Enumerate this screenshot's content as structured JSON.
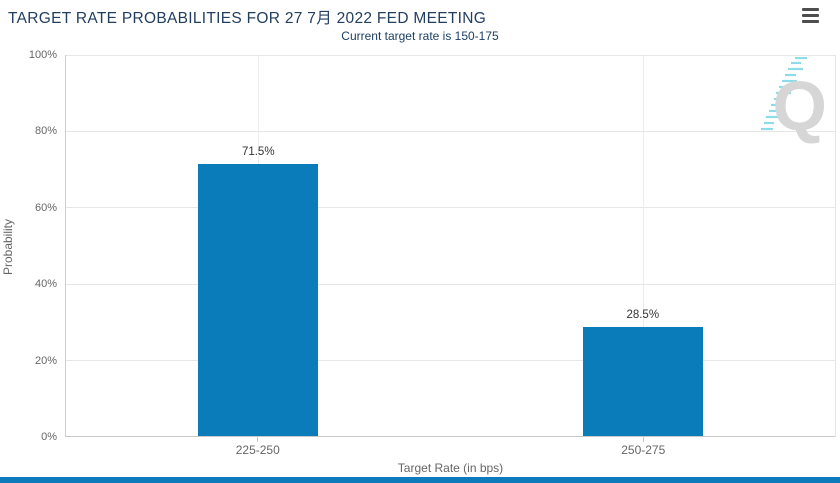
{
  "header": {
    "title": "TARGET RATE PROBABILITIES FOR 27 7月 2022 FED MEETING",
    "subtitle": "Current target rate is 150-175",
    "menu_icon": "hamburger-menu"
  },
  "chart_data": {
    "type": "bar",
    "title": "TARGET RATE PROBABILITIES FOR 27 7月 2022 FED MEETING",
    "subtitle": "Current target rate is 150-175",
    "categories": [
      "225-250",
      "250-275"
    ],
    "values": [
      71.5,
      28.5
    ],
    "value_labels": [
      "71.5%",
      "28.5%"
    ],
    "xlabel": "Target Rate (in bps)",
    "ylabel": "Probability",
    "ylim": [
      0,
      100
    ],
    "ytick_labels": [
      "100%",
      "80%",
      "60%",
      "40%",
      "20%",
      "0%"
    ],
    "grid": true,
    "legend": "none",
    "bar_color": "#0a7cba"
  },
  "watermark": {
    "letter": "Q",
    "accent_color": "#8edce9",
    "letter_color": "#d6d6d6"
  },
  "footer": {
    "color": "#0c7abb"
  }
}
